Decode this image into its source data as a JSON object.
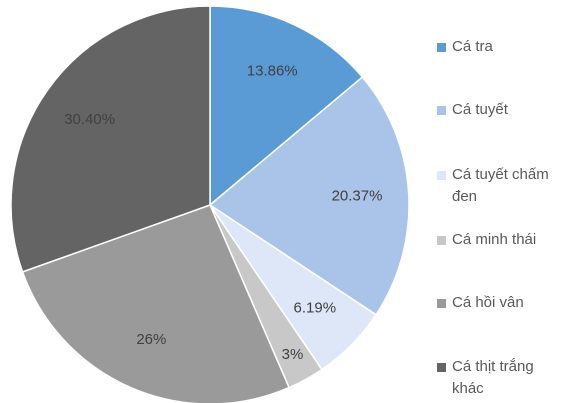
{
  "chart_data": {
    "type": "pie",
    "categories": [
      "Cá tra",
      "Cá tuyết",
      "Cá tuyết chấm đen",
      "Cá minh thái",
      "Cá hồi vân",
      "Cá thịt trắng khác"
    ],
    "values": [
      13.86,
      20.37,
      6.19,
      3,
      26,
      30.4
    ],
    "value_labels": [
      "13.86%",
      "20.37%",
      "6.19%",
      "3%",
      "26%",
      "30.40%"
    ],
    "colors": [
      "#5b9bd5",
      "#aac3e8",
      "#dee7f8",
      "#c8c8c8",
      "#9a9a9a",
      "#646464"
    ],
    "legend": "right"
  }
}
